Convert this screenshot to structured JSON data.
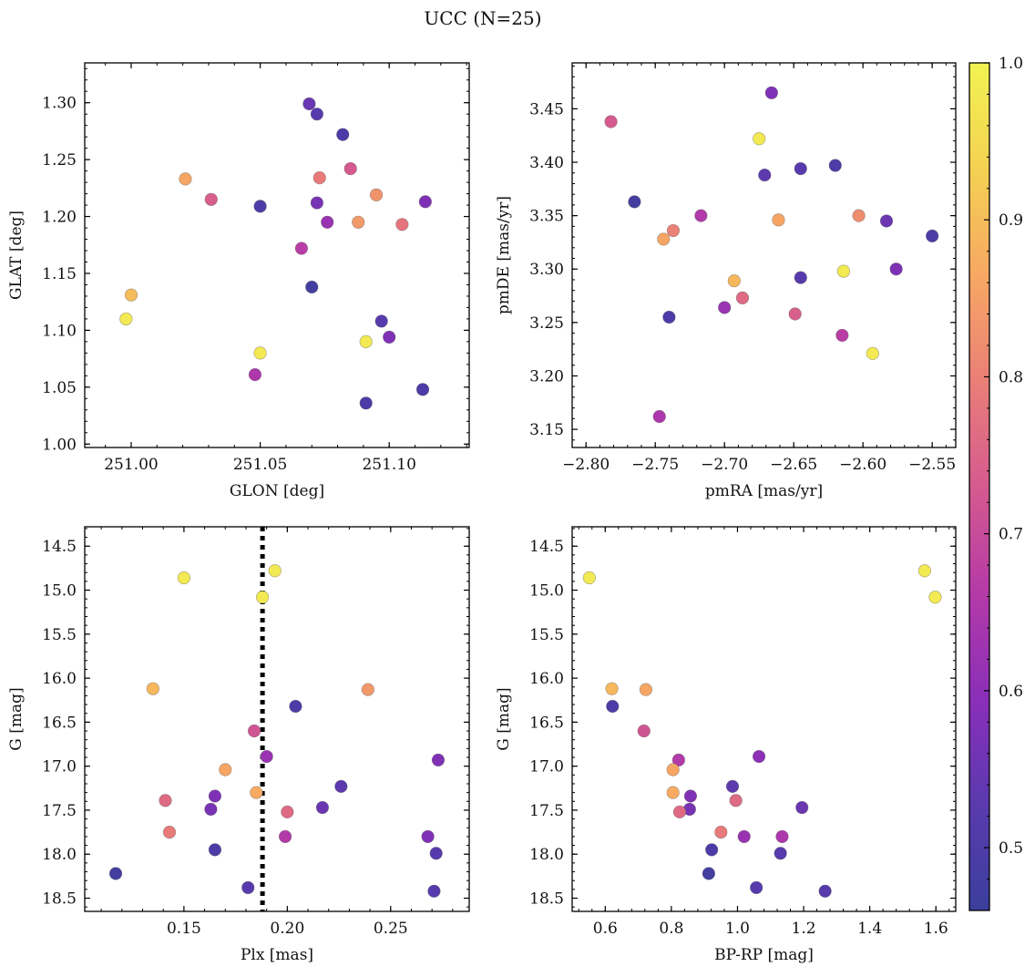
{
  "suptitle": "UCC (N=25)",
  "colorbar": {
    "range": [
      0.46,
      1.0
    ],
    "ticks": [
      0.5,
      0.6,
      0.7,
      0.8,
      0.9,
      1.0
    ],
    "tick_labels": [
      "0.5",
      "0.6",
      "0.7",
      "0.8",
      "0.9",
      "1.0"
    ],
    "colormap": "plasma",
    "colormap_stops": [
      "#3b3f9c",
      "#5a3aae",
      "#8a2fb8",
      "#b43aa8",
      "#d55a8f",
      "#ea7f77",
      "#f7a863",
      "#f4d152",
      "#f2f352"
    ]
  },
  "chart_data": [
    {
      "type": "scatter",
      "title": "",
      "xlabel": "GLON [deg]",
      "ylabel": "GLAT [deg]",
      "xlim": [
        250.982,
        251.131
      ],
      "ylim": [
        0.997,
        1.335
      ],
      "y_inverted": false,
      "xticks": [
        251.0,
        251.05,
        251.1
      ],
      "xtick_labels": [
        "251.00",
        "251.05",
        "251.10"
      ],
      "yticks": [
        1.0,
        1.05,
        1.1,
        1.15,
        1.2,
        1.25,
        1.3
      ],
      "ytick_labels": [
        "1.00",
        "1.05",
        "1.10",
        "1.15",
        "1.20",
        "1.25",
        "1.30"
      ],
      "points": [
        {
          "x": 251.069,
          "y": 1.299,
          "c": 0.55
        },
        {
          "x": 251.072,
          "y": 1.29,
          "c": 0.52
        },
        {
          "x": 251.082,
          "y": 1.272,
          "c": 0.5
        },
        {
          "x": 251.085,
          "y": 1.242,
          "c": 0.73
        },
        {
          "x": 251.073,
          "y": 1.234,
          "c": 0.79
        },
        {
          "x": 251.021,
          "y": 1.233,
          "c": 0.86
        },
        {
          "x": 251.095,
          "y": 1.219,
          "c": 0.83
        },
        {
          "x": 251.031,
          "y": 1.215,
          "c": 0.74
        },
        {
          "x": 251.114,
          "y": 1.213,
          "c": 0.58
        },
        {
          "x": 251.072,
          "y": 1.212,
          "c": 0.57
        },
        {
          "x": 251.05,
          "y": 1.209,
          "c": 0.5
        },
        {
          "x": 251.088,
          "y": 1.195,
          "c": 0.84
        },
        {
          "x": 251.076,
          "y": 1.195,
          "c": 0.62
        },
        {
          "x": 251.105,
          "y": 1.193,
          "c": 0.78
        },
        {
          "x": 251.066,
          "y": 1.172,
          "c": 0.67
        },
        {
          "x": 251.07,
          "y": 1.138,
          "c": 0.48
        },
        {
          "x": 251.0,
          "y": 1.131,
          "c": 0.9
        },
        {
          "x": 250.998,
          "y": 1.11,
          "c": 0.98
        },
        {
          "x": 251.097,
          "y": 1.108,
          "c": 0.52
        },
        {
          "x": 251.1,
          "y": 1.094,
          "c": 0.58
        },
        {
          "x": 251.091,
          "y": 1.09,
          "c": 0.98
        },
        {
          "x": 251.05,
          "y": 1.08,
          "c": 0.98
        },
        {
          "x": 251.048,
          "y": 1.061,
          "c": 0.65
        },
        {
          "x": 251.113,
          "y": 1.048,
          "c": 0.5
        },
        {
          "x": 251.091,
          "y": 1.036,
          "c": 0.5
        }
      ]
    },
    {
      "type": "scatter",
      "title": "",
      "xlabel": "pmRA [mas/yr]",
      "ylabel": "pmDE [mas/yr]",
      "xlim": [
        -2.81,
        -2.533
      ],
      "ylim": [
        3.133,
        3.493
      ],
      "y_inverted": false,
      "xticks": [
        -2.8,
        -2.75,
        -2.7,
        -2.65,
        -2.6,
        -2.55
      ],
      "xtick_labels": [
        "−2.80",
        "−2.75",
        "−2.70",
        "−2.65",
        "−2.60",
        "−2.55"
      ],
      "yticks": [
        3.15,
        3.2,
        3.25,
        3.3,
        3.35,
        3.4,
        3.45
      ],
      "ytick_labels": [
        "3.15",
        "3.20",
        "3.25",
        "3.30",
        "3.35",
        "3.40",
        "3.45"
      ],
      "points": [
        {
          "x": -2.666,
          "y": 3.465,
          "c": 0.58
        },
        {
          "x": -2.782,
          "y": 3.438,
          "c": 0.73
        },
        {
          "x": -2.675,
          "y": 3.422,
          "c": 0.98
        },
        {
          "x": -2.62,
          "y": 3.397,
          "c": 0.5
        },
        {
          "x": -2.645,
          "y": 3.394,
          "c": 0.52
        },
        {
          "x": -2.671,
          "y": 3.388,
          "c": 0.53
        },
        {
          "x": -2.765,
          "y": 3.363,
          "c": 0.48
        },
        {
          "x": -2.717,
          "y": 3.35,
          "c": 0.66
        },
        {
          "x": -2.603,
          "y": 3.35,
          "c": 0.82
        },
        {
          "x": -2.661,
          "y": 3.346,
          "c": 0.86
        },
        {
          "x": -2.583,
          "y": 3.345,
          "c": 0.55
        },
        {
          "x": -2.737,
          "y": 3.336,
          "c": 0.8
        },
        {
          "x": -2.55,
          "y": 3.331,
          "c": 0.5
        },
        {
          "x": -2.744,
          "y": 3.328,
          "c": 0.86
        },
        {
          "x": -2.576,
          "y": 3.3,
          "c": 0.58
        },
        {
          "x": -2.614,
          "y": 3.298,
          "c": 0.98
        },
        {
          "x": -2.645,
          "y": 3.292,
          "c": 0.52
        },
        {
          "x": -2.693,
          "y": 3.289,
          "c": 0.89
        },
        {
          "x": -2.687,
          "y": 3.273,
          "c": 0.76
        },
        {
          "x": -2.7,
          "y": 3.264,
          "c": 0.62
        },
        {
          "x": -2.649,
          "y": 3.258,
          "c": 0.74
        },
        {
          "x": -2.74,
          "y": 3.255,
          "c": 0.5
        },
        {
          "x": -2.615,
          "y": 3.238,
          "c": 0.67
        },
        {
          "x": -2.593,
          "y": 3.221,
          "c": 0.98
        },
        {
          "x": -2.747,
          "y": 3.162,
          "c": 0.65
        }
      ]
    },
    {
      "type": "scatter",
      "title": "",
      "xlabel": "Plx [mas]",
      "ylabel": "G [mag]",
      "xlim": [
        0.102,
        0.288
      ],
      "ylim": [
        18.65,
        14.28
      ],
      "y_inverted": true,
      "vline": 0.188,
      "xticks": [
        0.15,
        0.2,
        0.25
      ],
      "xtick_labels": [
        "0.15",
        "0.20",
        "0.25"
      ],
      "yticks": [
        14.5,
        15.0,
        15.5,
        16.0,
        16.5,
        17.0,
        17.5,
        18.0,
        18.5
      ],
      "ytick_labels": [
        "14.5",
        "15.0",
        "15.5",
        "16.0",
        "16.5",
        "17.0",
        "17.5",
        "18.0",
        "18.5"
      ],
      "points": [
        {
          "x": 0.194,
          "y": 14.78,
          "c": 0.98
        },
        {
          "x": 0.15,
          "y": 14.86,
          "c": 0.98
        },
        {
          "x": 0.188,
          "y": 15.08,
          "c": 0.98
        },
        {
          "x": 0.135,
          "y": 16.12,
          "c": 0.89
        },
        {
          "x": 0.239,
          "y": 16.13,
          "c": 0.84
        },
        {
          "x": 0.204,
          "y": 16.32,
          "c": 0.5
        },
        {
          "x": 0.184,
          "y": 16.6,
          "c": 0.72
        },
        {
          "x": 0.19,
          "y": 16.89,
          "c": 0.62
        },
        {
          "x": 0.273,
          "y": 16.93,
          "c": 0.58
        },
        {
          "x": 0.17,
          "y": 17.04,
          "c": 0.86
        },
        {
          "x": 0.226,
          "y": 17.23,
          "c": 0.53
        },
        {
          "x": 0.185,
          "y": 17.3,
          "c": 0.87
        },
        {
          "x": 0.165,
          "y": 17.34,
          "c": 0.58
        },
        {
          "x": 0.141,
          "y": 17.39,
          "c": 0.76
        },
        {
          "x": 0.217,
          "y": 17.47,
          "c": 0.55
        },
        {
          "x": 0.163,
          "y": 17.49,
          "c": 0.57
        },
        {
          "x": 0.2,
          "y": 17.52,
          "c": 0.76
        },
        {
          "x": 0.143,
          "y": 17.75,
          "c": 0.79
        },
        {
          "x": 0.199,
          "y": 17.8,
          "c": 0.66
        },
        {
          "x": 0.268,
          "y": 17.8,
          "c": 0.58
        },
        {
          "x": 0.165,
          "y": 17.95,
          "c": 0.5
        },
        {
          "x": 0.272,
          "y": 17.99,
          "c": 0.52
        },
        {
          "x": 0.117,
          "y": 18.22,
          "c": 0.48
        },
        {
          "x": 0.181,
          "y": 18.38,
          "c": 0.52
        },
        {
          "x": 0.271,
          "y": 18.42,
          "c": 0.52
        }
      ]
    },
    {
      "type": "scatter",
      "title": "",
      "xlabel": "BP-RP [mag]",
      "ylabel": "G [mag]",
      "xlim": [
        0.5,
        1.66
      ],
      "ylim": [
        18.65,
        14.28
      ],
      "y_inverted": true,
      "xticks": [
        0.6,
        0.8,
        1.0,
        1.2,
        1.4,
        1.6
      ],
      "xtick_labels": [
        "0.6",
        "0.8",
        "1.0",
        "1.2",
        "1.4",
        "1.6"
      ],
      "yticks": [
        14.5,
        15.0,
        15.5,
        16.0,
        16.5,
        17.0,
        17.5,
        18.0,
        18.5
      ],
      "ytick_labels": [
        "14.5",
        "15.0",
        "15.5",
        "16.0",
        "16.5",
        "17.0",
        "17.5",
        "18.0",
        "18.5"
      ],
      "points": [
        {
          "x": 1.566,
          "y": 14.78,
          "c": 0.98
        },
        {
          "x": 0.552,
          "y": 14.86,
          "c": 0.98
        },
        {
          "x": 1.598,
          "y": 15.08,
          "c": 0.98
        },
        {
          "x": 0.62,
          "y": 16.12,
          "c": 0.89
        },
        {
          "x": 0.723,
          "y": 16.13,
          "c": 0.86
        },
        {
          "x": 0.622,
          "y": 16.32,
          "c": 0.5
        },
        {
          "x": 0.717,
          "y": 16.6,
          "c": 0.72
        },
        {
          "x": 1.065,
          "y": 16.89,
          "c": 0.6
        },
        {
          "x": 0.822,
          "y": 16.93,
          "c": 0.66
        },
        {
          "x": 0.805,
          "y": 17.04,
          "c": 0.86
        },
        {
          "x": 0.985,
          "y": 17.23,
          "c": 0.53
        },
        {
          "x": 0.805,
          "y": 17.3,
          "c": 0.87
        },
        {
          "x": 0.858,
          "y": 17.34,
          "c": 0.58
        },
        {
          "x": 0.995,
          "y": 17.39,
          "c": 0.76
        },
        {
          "x": 1.195,
          "y": 17.47,
          "c": 0.55
        },
        {
          "x": 0.855,
          "y": 17.49,
          "c": 0.57
        },
        {
          "x": 0.825,
          "y": 17.52,
          "c": 0.76
        },
        {
          "x": 0.95,
          "y": 17.75,
          "c": 0.79
        },
        {
          "x": 1.02,
          "y": 17.8,
          "c": 0.62
        },
        {
          "x": 1.135,
          "y": 17.8,
          "c": 0.65
        },
        {
          "x": 0.922,
          "y": 17.95,
          "c": 0.5
        },
        {
          "x": 1.13,
          "y": 17.99,
          "c": 0.52
        },
        {
          "x": 0.913,
          "y": 18.22,
          "c": 0.48
        },
        {
          "x": 1.057,
          "y": 18.38,
          "c": 0.52
        },
        {
          "x": 1.265,
          "y": 18.42,
          "c": 0.52
        }
      ]
    }
  ]
}
